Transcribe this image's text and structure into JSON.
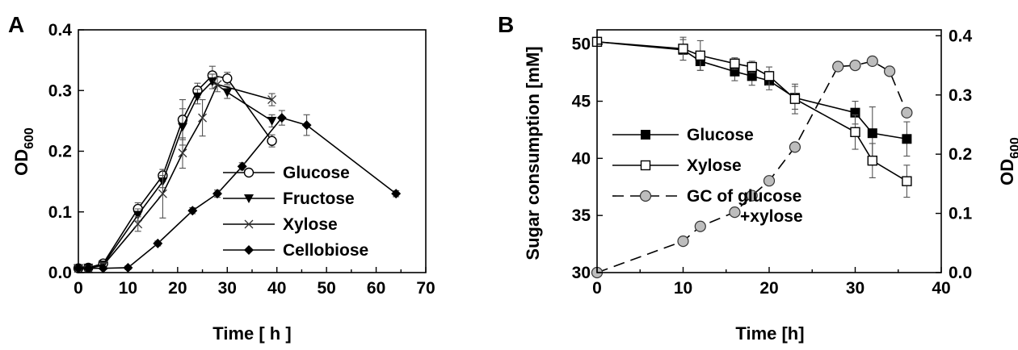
{
  "chart_data": [
    {
      "panel_label": "A",
      "type": "line",
      "xlabel": "Time [ h ]",
      "ylabel": "OD",
      "ylabel_sub": "600",
      "xlim": [
        0,
        70
      ],
      "ylim": [
        0,
        0.4
      ],
      "xticks": [
        0,
        10,
        20,
        30,
        40,
        50,
        60,
        70
      ],
      "yticks": [
        0.0,
        0.1,
        0.2,
        0.3,
        0.4
      ],
      "xtick_labels": [
        "0",
        "10",
        "20",
        "30",
        "40",
        "50",
        "60",
        "70"
      ],
      "ytick_labels": [
        "0.0",
        "0.1",
        "0.2",
        "0.3",
        "0.4"
      ],
      "legend_position": "center-right",
      "series": [
        {
          "name": "Glucose",
          "marker": "circle-open",
          "x": [
            0,
            2,
            5,
            12,
            17,
            21,
            24,
            27,
            30,
            39
          ],
          "y": [
            0.007,
            0.008,
            0.015,
            0.105,
            0.16,
            0.252,
            0.3,
            0.325,
            0.32,
            0.217
          ],
          "err": [
            0.003,
            0.003,
            0.004,
            0.01,
            0.01,
            0.033,
            0.012,
            0.015,
            0.01,
            0.01
          ]
        },
        {
          "name": "Fructose",
          "marker": "triangle-down-filled",
          "x": [
            0,
            2,
            5,
            12,
            17,
            21,
            24,
            27,
            30,
            39
          ],
          "y": [
            0.007,
            0.008,
            0.013,
            0.095,
            0.15,
            0.24,
            0.29,
            0.315,
            0.297,
            0.25
          ],
          "err": [
            0.003,
            0.003,
            0.004,
            0.01,
            0.01,
            0.03,
            0.012,
            0.012,
            0.01,
            0.01
          ]
        },
        {
          "name": "Xylose",
          "marker": "cross",
          "x": [
            0,
            2,
            5,
            12,
            17,
            21,
            25,
            28,
            39
          ],
          "y": [
            0.007,
            0.007,
            0.012,
            0.08,
            0.13,
            0.197,
            0.255,
            0.31,
            0.285
          ],
          "err": [
            0.003,
            0.003,
            0.004,
            0.012,
            0.04,
            0.025,
            0.03,
            0.012,
            0.01
          ]
        },
        {
          "name": "Cellobiose",
          "marker": "diamond-filled",
          "x": [
            0,
            2,
            5,
            10,
            16,
            23,
            28,
            33,
            41,
            46,
            64
          ],
          "y": [
            0.007,
            0.007,
            0.007,
            0.008,
            0.048,
            0.102,
            0.13,
            0.175,
            0.255,
            0.243,
            0.13
          ],
          "err": [
            0.002,
            0.002,
            0.002,
            0.003,
            0.004,
            0.005,
            0.006,
            0.006,
            0.012,
            0.017,
            0.005
          ]
        }
      ]
    },
    {
      "panel_label": "B",
      "type": "line",
      "xlabel": "Time [h]",
      "ylabel": "Sugar consumption [mM]",
      "y2label": "OD",
      "y2label_sub": "600",
      "xlim": [
        0,
        40
      ],
      "ylim": [
        30,
        51.25
      ],
      "y2lim": [
        0,
        0.41
      ],
      "xticks": [
        0,
        10,
        20,
        30,
        40
      ],
      "yticks": [
        30,
        35,
        40,
        45,
        50
      ],
      "y2ticks": [
        0.0,
        0.1,
        0.2,
        0.3,
        0.4
      ],
      "xtick_labels": [
        "0",
        "10",
        "20",
        "30",
        "40"
      ],
      "ytick_labels": [
        "30",
        "35",
        "40",
        "45",
        "50"
      ],
      "y2tick_labels": [
        "0.0",
        "0.1",
        "0.2",
        "0.3",
        "0.4"
      ],
      "legend_position": "center-left",
      "series": [
        {
          "name": "Glucose",
          "axis": "left",
          "marker": "square-filled",
          "line": "solid",
          "x": [
            0,
            10,
            12,
            16,
            18,
            20,
            23,
            30,
            32,
            36
          ],
          "y": [
            50.2,
            49.5,
            48.5,
            47.6,
            47.2,
            46.8,
            45.3,
            44.0,
            42.2,
            41.7
          ],
          "err": [
            0.2,
            0.9,
            0.8,
            0.8,
            0.8,
            0.8,
            1.0,
            1.0,
            2.3,
            1.5
          ]
        },
        {
          "name": "Xylose",
          "axis": "left",
          "marker": "square-open",
          "line": "solid",
          "x": [
            0,
            10,
            12,
            16,
            18,
            20,
            23,
            30,
            32,
            36
          ],
          "y": [
            50.2,
            49.6,
            49.0,
            48.3,
            48.0,
            47.2,
            45.2,
            42.3,
            39.8,
            38.0
          ],
          "err": [
            0.2,
            1.0,
            1.3,
            0.5,
            0.5,
            0.8,
            1.3,
            1.5,
            1.5,
            1.4
          ]
        },
        {
          "name": "GC   of glucose",
          "name_line2": "+xylose",
          "axis": "right",
          "marker": "circle-gray",
          "line": "dashed",
          "x": [
            0,
            10,
            12,
            16,
            18,
            20,
            23,
            28,
            30,
            32,
            34,
            36
          ],
          "y": [
            0.0,
            0.053,
            0.078,
            0.102,
            0.13,
            0.155,
            0.212,
            0.348,
            0.35,
            0.357,
            0.34,
            0.27
          ],
          "err": []
        }
      ]
    }
  ]
}
